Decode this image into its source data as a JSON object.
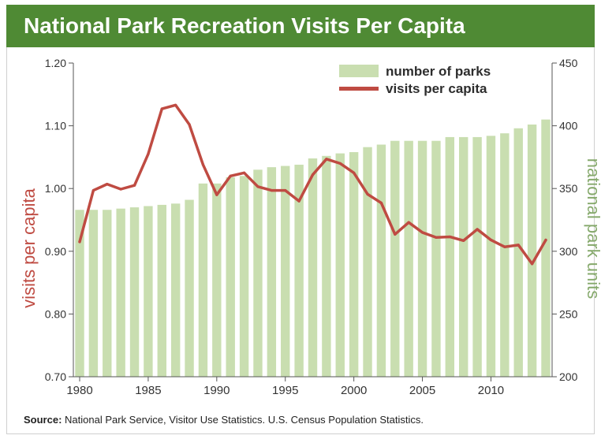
{
  "title": "National Park Recreation Visits Per Capita",
  "source_label": "Source:",
  "source_text": "National Park Service, Visitor Use Statistics. U.S. Census Population Statistics.",
  "colors": {
    "title_bg": "#4f8a34",
    "bars": "#c9deb0",
    "line": "#bf4b42",
    "right_axis_text": "#86a96c"
  },
  "chart_data": {
    "type": "bar+line",
    "ylabel_left": "visits per capita",
    "ylabel_right": "national park units",
    "left_axis": {
      "range": [
        0.7,
        1.2
      ],
      "ticks": [
        "0.70",
        "0.80",
        "0.90",
        "1.00",
        "1.10",
        "1.20"
      ]
    },
    "right_axis": {
      "range": [
        200,
        450
      ],
      "ticks": [
        "200",
        "250",
        "300",
        "350",
        "400",
        "450"
      ]
    },
    "x_ticks": [
      "1980",
      "1985",
      "1990",
      "1995",
      "2000",
      "2005",
      "2010"
    ],
    "legend_position": "top-right",
    "x": [
      1980,
      1981,
      1982,
      1983,
      1984,
      1985,
      1986,
      1987,
      1988,
      1989,
      1990,
      1991,
      1992,
      1993,
      1994,
      1995,
      1996,
      1997,
      1998,
      1999,
      2000,
      2001,
      2002,
      2003,
      2004,
      2005,
      2006,
      2007,
      2008,
      2009,
      2010,
      2011,
      2012,
      2013,
      2014
    ],
    "series": [
      {
        "name": "number of parks",
        "type": "bar",
        "axis": "right",
        "values": [
          333,
          333,
          333,
          334,
          335,
          336,
          337,
          338,
          341,
          354,
          354,
          359,
          360,
          365,
          367,
          368,
          369,
          374,
          376,
          378,
          379,
          383,
          385,
          388,
          388,
          388,
          388,
          391,
          391,
          391,
          392,
          394,
          398,
          401,
          405
        ]
      },
      {
        "name": "visits per capita",
        "type": "line",
        "axis": "left",
        "values": [
          0.915,
          0.997,
          1.007,
          0.999,
          1.005,
          1.055,
          1.127,
          1.133,
          1.102,
          1.038,
          0.99,
          1.02,
          1.025,
          1.003,
          0.997,
          0.997,
          0.98,
          1.022,
          1.047,
          1.04,
          1.025,
          0.991,
          0.977,
          0.927,
          0.946,
          0.93,
          0.922,
          0.923,
          0.917,
          0.935,
          0.918,
          0.907,
          0.91,
          0.88,
          0.918
        ]
      }
    ]
  }
}
